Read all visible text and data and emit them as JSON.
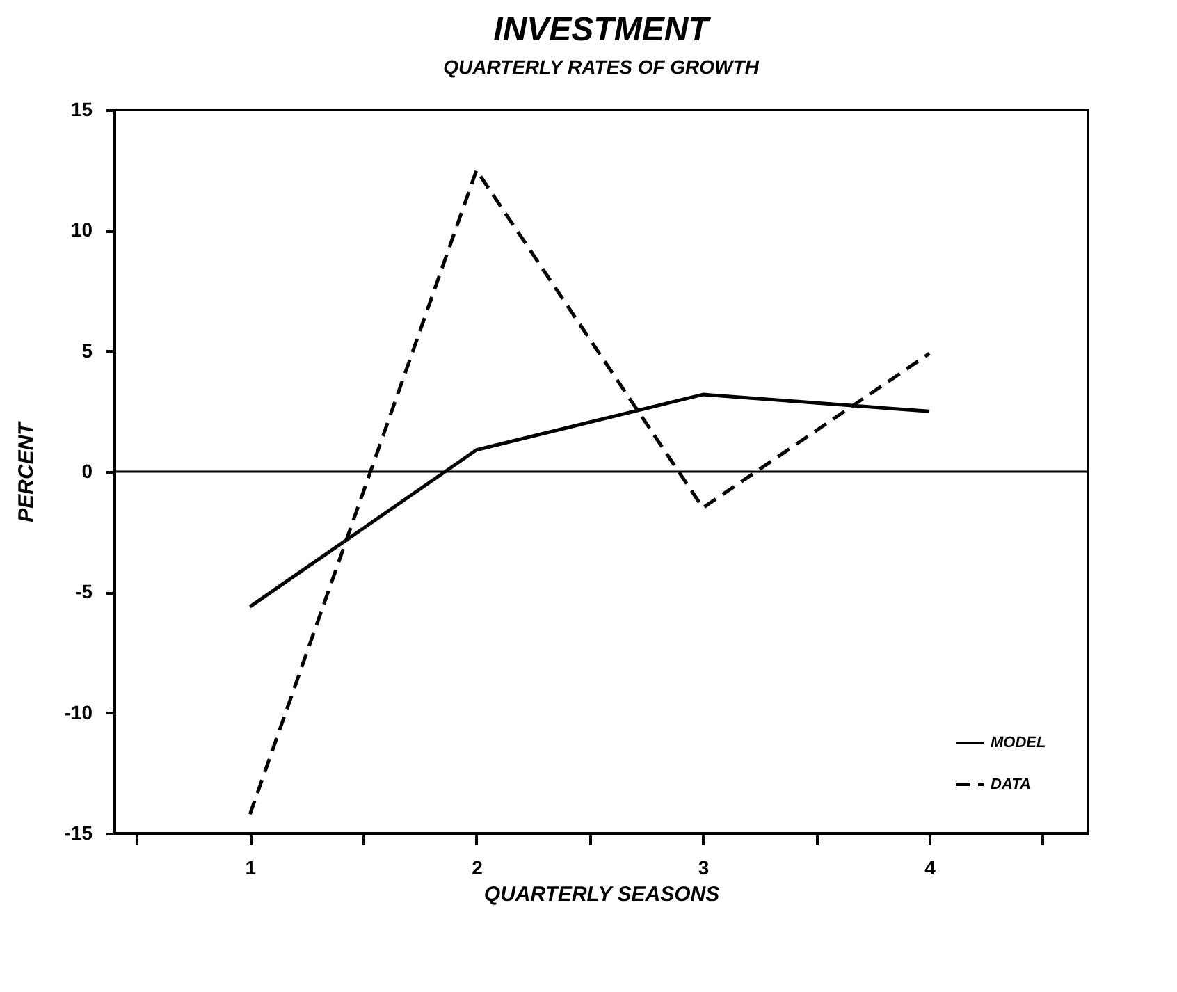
{
  "chart_data": {
    "type": "line",
    "title": "INVESTMENT",
    "subtitle": "QUARTERLY RATES OF GROWTH",
    "xlabel": "QUARTERLY SEASONS",
    "ylabel": "PERCENT",
    "x": [
      1,
      2,
      3,
      4
    ],
    "series": [
      {
        "name": "MODEL",
        "color": "#000000",
        "line_style": "solid",
        "values": [
          -5.6,
          0.9,
          3.2,
          2.5
        ]
      },
      {
        "name": "DATA",
        "color": "#000000",
        "line_style": "dashed",
        "values": [
          -14.2,
          12.5,
          -1.5,
          4.9
        ]
      }
    ],
    "xlim": [
      0.4,
      4.7
    ],
    "xticks": [
      {
        "value": 0.5,
        "label": null
      },
      1,
      {
        "value": 1.5,
        "label": null
      },
      2,
      {
        "value": 2.5,
        "label": null
      },
      3,
      {
        "value": 3.5,
        "label": null
      },
      4,
      {
        "value": 4.5,
        "label": null
      }
    ],
    "ylim": [
      -15,
      15
    ],
    "yticks": [
      -15,
      -10,
      -5,
      0,
      5,
      10,
      15
    ],
    "ref_lines": [
      {
        "axis": "y",
        "value": 0,
        "color": "#000000"
      }
    ],
    "legend": "bottom right",
    "grid": false
  }
}
